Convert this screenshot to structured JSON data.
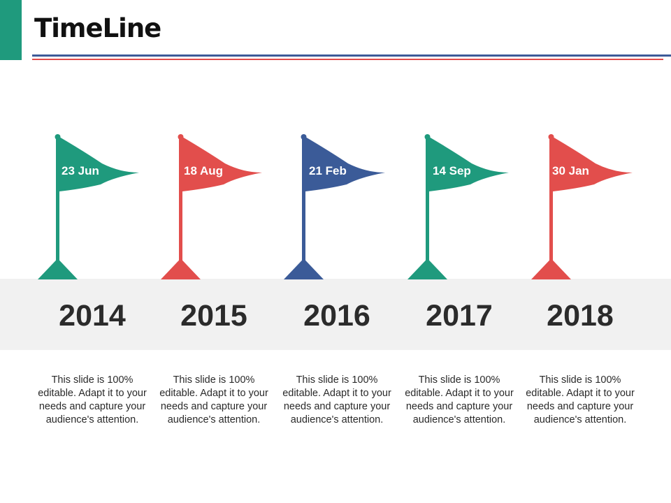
{
  "slide": {
    "title": "TimeLine"
  },
  "colors": {
    "green": "#1f9a7d",
    "red": "#e24e4c",
    "blue": "#3b5b98",
    "band": "#f1f1f1"
  },
  "milestones": [
    {
      "date": "23 Jun",
      "year": "2014",
      "description": "This slide is 100% editable. Adapt it to your needs and capture your audience's attention.",
      "color": "green"
    },
    {
      "date": "18 Aug",
      "year": "2015",
      "description": "This slide is 100% editable. Adapt it to your needs and capture your audience's attention.",
      "color": "red"
    },
    {
      "date": "21 Feb",
      "year": "2016",
      "description": "This slide is 100% editable. Adapt it to your needs and capture your audience's attention.",
      "color": "blue"
    },
    {
      "date": "14 Sep",
      "year": "2017",
      "description": "This slide is 100% editable. Adapt it to your needs and capture your audience's attention.",
      "color": "green"
    },
    {
      "date": "30 Jan",
      "year": "2018",
      "description": "This slide is 100% editable. Adapt it to your needs and capture your audience's attention.",
      "color": "red"
    }
  ]
}
